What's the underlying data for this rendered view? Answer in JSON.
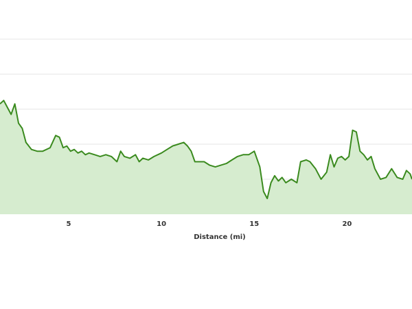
{
  "chart_data": {
    "type": "area",
    "xlabel": "Distance (mi)",
    "x_ticks": [
      5,
      10,
      15,
      20
    ],
    "xlim": [
      1.3,
      23.5
    ],
    "ylim": [
      0,
      10
    ],
    "grid": true,
    "y_gridlines": [
      2,
      4,
      6,
      8,
      10
    ],
    "line_color": "#3a8a1e",
    "fill_color": "#d6eccf",
    "grid_color": "#e6e6e6",
    "series": [
      {
        "x": [
          1.3,
          1.5,
          1.7,
          1.9,
          2.1,
          2.3,
          2.5,
          2.7,
          3.0,
          3.3,
          3.6,
          4.0,
          4.3,
          4.5,
          4.7,
          4.9,
          5.1,
          5.3,
          5.5,
          5.7,
          5.9,
          6.1,
          6.4,
          6.7,
          7.0,
          7.3,
          7.6,
          7.8,
          8.0,
          8.3,
          8.6,
          8.8,
          9.0,
          9.3,
          9.6,
          10.0,
          10.3,
          10.6,
          10.9,
          11.2,
          11.4,
          11.6,
          11.8,
          12.0,
          12.3,
          12.6,
          12.9,
          13.2,
          13.5,
          13.8,
          14.1,
          14.4,
          14.7,
          15.0,
          15.3,
          15.5,
          15.7,
          15.9,
          16.1,
          16.3,
          16.5,
          16.7,
          17.0,
          17.3,
          17.5,
          17.8,
          18.0,
          18.3,
          18.6,
          18.9,
          19.1,
          19.3,
          19.5,
          19.7,
          19.9,
          20.1,
          20.3,
          20.5,
          20.7,
          20.9,
          21.1,
          21.3,
          21.5,
          21.8,
          22.1,
          22.4,
          22.7,
          23.0,
          23.2,
          23.4,
          23.5
        ],
        "y": [
          6.3,
          6.5,
          6.1,
          5.7,
          6.3,
          5.2,
          4.9,
          4.1,
          3.7,
          3.6,
          3.6,
          3.8,
          4.5,
          4.4,
          3.8,
          3.9,
          3.6,
          3.7,
          3.5,
          3.6,
          3.4,
          3.5,
          3.4,
          3.3,
          3.4,
          3.3,
          3.0,
          3.6,
          3.3,
          3.2,
          3.4,
          3.0,
          3.2,
          3.1,
          3.3,
          3.5,
          3.7,
          3.9,
          4.0,
          4.1,
          3.9,
          3.6,
          3.0,
          3.0,
          3.0,
          2.8,
          2.7,
          2.8,
          2.9,
          3.1,
          3.3,
          3.4,
          3.4,
          3.6,
          2.7,
          1.3,
          0.9,
          1.8,
          2.2,
          1.9,
          2.1,
          1.8,
          2.0,
          1.8,
          3.0,
          3.1,
          3.0,
          2.6,
          2.0,
          2.4,
          3.4,
          2.7,
          3.2,
          3.3,
          3.1,
          3.3,
          4.8,
          4.7,
          3.6,
          3.4,
          3.1,
          3.3,
          2.6,
          2.0,
          2.1,
          2.6,
          2.1,
          2.0,
          2.5,
          2.3,
          2.0
        ]
      }
    ]
  }
}
